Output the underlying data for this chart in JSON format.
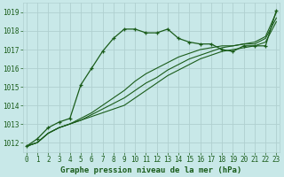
{
  "bg_color": "#c8e8e8",
  "grid_color": "#b0d0d0",
  "line_color": "#1a5c1a",
  "marker_color": "#1a5c1a",
  "xlabel": "Graphe pression niveau de la mer (hPa)",
  "ylim": [
    1011.5,
    1019.5
  ],
  "xlim": [
    -0.3,
    23.3
  ],
  "yticks": [
    1012,
    1013,
    1014,
    1015,
    1016,
    1017,
    1018,
    1019
  ],
  "xticks": [
    0,
    1,
    2,
    3,
    4,
    5,
    6,
    7,
    8,
    9,
    10,
    11,
    12,
    13,
    14,
    15,
    16,
    17,
    18,
    19,
    20,
    21,
    22,
    23
  ],
  "series_main": [
    1011.8,
    1012.2,
    1012.8,
    1013.1,
    1013.3,
    1015.1,
    1016.0,
    1016.9,
    1017.6,
    1018.1,
    1018.1,
    1017.9,
    1017.9,
    1018.1,
    1017.6,
    1017.4,
    1017.3,
    1017.3,
    1017.0,
    1016.9,
    1017.2,
    1017.2,
    1017.2,
    1019.1
  ],
  "series_a": [
    1011.8,
    1012.0,
    1012.5,
    1012.8,
    1013.0,
    1013.2,
    1013.4,
    1013.6,
    1013.8,
    1014.0,
    1014.4,
    1014.8,
    1015.2,
    1015.6,
    1015.9,
    1016.2,
    1016.5,
    1016.7,
    1016.9,
    1017.0,
    1017.1,
    1017.2,
    1017.4,
    1018.5
  ],
  "series_b": [
    1011.8,
    1012.0,
    1012.5,
    1012.8,
    1013.0,
    1013.2,
    1013.5,
    1013.8,
    1014.1,
    1014.4,
    1014.8,
    1015.2,
    1015.5,
    1015.9,
    1016.2,
    1016.5,
    1016.7,
    1016.9,
    1017.1,
    1017.2,
    1017.3,
    1017.3,
    1017.6,
    1018.7
  ],
  "series_c": [
    1011.8,
    1012.0,
    1012.5,
    1012.8,
    1013.0,
    1013.3,
    1013.6,
    1014.0,
    1014.4,
    1014.8,
    1015.3,
    1015.7,
    1016.0,
    1016.3,
    1016.6,
    1016.8,
    1017.0,
    1017.1,
    1017.2,
    1017.2,
    1017.3,
    1017.4,
    1017.7,
    1019.0
  ],
  "title_fontsize": 6.5,
  "tick_fontsize": 5.5
}
